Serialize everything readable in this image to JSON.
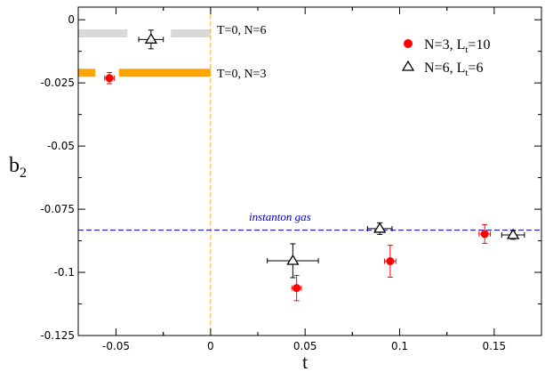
{
  "chart_data": {
    "type": "scatter",
    "xlabel": "t",
    "ylabel": "b",
    "ylabel_sub": "2",
    "xlim": [
      -0.07,
      0.175
    ],
    "ylim": [
      -0.125,
      0.005
    ],
    "x_ticks": [
      {
        "value": -0.05,
        "label": "-0.05"
      },
      {
        "value": 0,
        "label": "0"
      },
      {
        "value": 0.05,
        "label": "0.05"
      },
      {
        "value": 0.1,
        "label": "0.1"
      },
      {
        "value": 0.15,
        "label": "0.15"
      }
    ],
    "y_ticks": [
      {
        "value": 0,
        "label": "0"
      },
      {
        "value": -0.025,
        "label": "-0.025"
      },
      {
        "value": -0.05,
        "label": "-0.05"
      },
      {
        "value": -0.075,
        "label": "-0.075"
      },
      {
        "value": -0.1,
        "label": "-0.1"
      },
      {
        "value": -0.125,
        "label": "-0.125"
      }
    ],
    "series": [
      {
        "name": "N=3, L",
        "name_sub": "t",
        "name_tail": "=10",
        "marker": "circle",
        "color": "#ff0000",
        "points": [
          {
            "x": -0.0535,
            "y": -0.0231,
            "xerr": 0.0025,
            "yerr": 0.0022
          },
          {
            "x": 0.0455,
            "y": -0.1062,
            "xerr": 0.0025,
            "yerr": 0.005
          },
          {
            "x": 0.095,
            "y": -0.0956,
            "xerr": 0.003,
            "yerr": 0.0063
          },
          {
            "x": 0.145,
            "y": -0.0848,
            "xerr": 0.003,
            "yerr": 0.0037
          }
        ]
      },
      {
        "name": "N=6, L",
        "name_sub": "t",
        "name_tail": "=6",
        "marker": "triangle",
        "color": "#000000",
        "points": [
          {
            "x": -0.0315,
            "y": -0.0078,
            "xerr": 0.0065,
            "yerr": 0.0037
          },
          {
            "x": 0.0435,
            "y": -0.0954,
            "xerr": 0.0135,
            "yerr": 0.0067
          },
          {
            "x": 0.0895,
            "y": -0.0827,
            "xerr": 0.0065,
            "yerr": 0.0023
          },
          {
            "x": 0.16,
            "y": -0.0852,
            "xerr": 0.006,
            "yerr": 0.0017
          }
        ]
      }
    ],
    "reference_bands": [
      {
        "label": "T=0, N=6",
        "y": -0.0054,
        "color": "#d9d9d9",
        "x_start": -0.07,
        "x_end": 0,
        "gap": [
          -0.044,
          -0.021
        ]
      },
      {
        "label": "T=0, N=3",
        "y": -0.021,
        "color": "#ffa500",
        "x_start": -0.07,
        "x_end": 0,
        "gap": [
          -0.061,
          -0.0485
        ]
      }
    ],
    "reference_line": {
      "label": "instanton gas",
      "y": -0.0833,
      "color": "#0000cc"
    },
    "vertical_line": {
      "x": 0,
      "color": "#f0b030"
    },
    "legend_placement": "top-right",
    "grid": false
  }
}
